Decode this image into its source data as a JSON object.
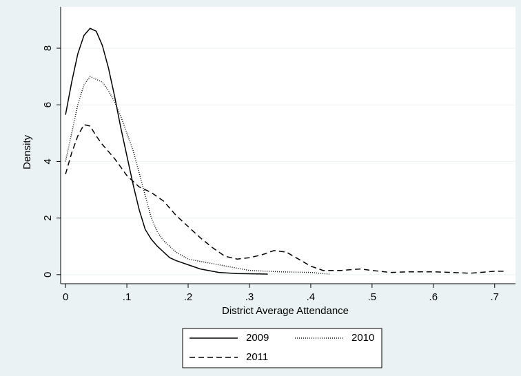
{
  "chart_data": {
    "type": "line",
    "x_label": "District Average Attendance",
    "y_label": "Density",
    "xlim": [
      -0.008,
      0.734
    ],
    "ylim": [
      -0.32,
      9.46
    ],
    "xticks": [
      0,
      {
        "value": 0.1,
        "label": ".1"
      },
      {
        "value": 0.2,
        "label": ".2"
      },
      {
        "value": 0.3,
        "label": ".3"
      },
      {
        "value": 0.4,
        "label": ".4"
      },
      {
        "value": 0.5,
        "label": ".5"
      },
      {
        "value": 0.6,
        "label": ".6"
      },
      {
        "value": 0.7,
        "label": ".7"
      }
    ],
    "yticks": [
      0,
      2,
      4,
      6,
      8
    ],
    "grid": true,
    "legend": "bottom",
    "series": [
      {
        "name": "2009",
        "color": "#000000",
        "dash": "solid",
        "x": [
          0,
          0.01,
          0.02,
          0.03,
          0.04,
          0.05,
          0.06,
          0.07,
          0.08,
          0.09,
          0.1,
          0.11,
          0.12,
          0.13,
          0.14,
          0.15,
          0.16,
          0.17,
          0.18,
          0.2,
          0.22,
          0.25,
          0.28,
          0.33
        ],
        "values": [
          5.65,
          6.8,
          7.8,
          8.45,
          8.7,
          8.6,
          8.1,
          7.3,
          6.3,
          5.2,
          4.2,
          3.2,
          2.3,
          1.6,
          1.25,
          1.0,
          0.8,
          0.6,
          0.5,
          0.35,
          0.2,
          0.08,
          0.04,
          0.02
        ]
      },
      {
        "name": "2010",
        "color": "#000000",
        "dash": "dotted",
        "x": [
          0,
          0.01,
          0.02,
          0.03,
          0.04,
          0.05,
          0.06,
          0.07,
          0.08,
          0.09,
          0.1,
          0.11,
          0.12,
          0.13,
          0.14,
          0.15,
          0.16,
          0.18,
          0.2,
          0.25,
          0.3,
          0.35,
          0.4,
          0.43
        ],
        "values": [
          4.0,
          5.0,
          6.0,
          6.7,
          7.0,
          6.9,
          6.8,
          6.5,
          6.1,
          5.6,
          5.0,
          4.4,
          3.6,
          2.8,
          2.0,
          1.5,
          1.2,
          0.8,
          0.55,
          0.35,
          0.15,
          0.1,
          0.08,
          0.02
        ]
      },
      {
        "name": "2011",
        "color": "#000000",
        "dash": "dashed",
        "x": [
          0,
          0.01,
          0.02,
          0.03,
          0.04,
          0.05,
          0.06,
          0.08,
          0.1,
          0.12,
          0.14,
          0.16,
          0.18,
          0.2,
          0.22,
          0.24,
          0.26,
          0.28,
          0.3,
          0.32,
          0.34,
          0.36,
          0.38,
          0.4,
          0.42,
          0.45,
          0.48,
          0.5,
          0.53,
          0.56,
          0.6,
          0.63,
          0.66,
          0.7,
          0.72
        ],
        "values": [
          3.55,
          4.3,
          4.9,
          5.3,
          5.25,
          4.9,
          4.6,
          4.1,
          3.5,
          3.1,
          2.9,
          2.6,
          2.1,
          1.7,
          1.3,
          0.95,
          0.65,
          0.55,
          0.6,
          0.7,
          0.85,
          0.8,
          0.55,
          0.3,
          0.15,
          0.15,
          0.2,
          0.15,
          0.08,
          0.1,
          0.1,
          0.08,
          0.05,
          0.12,
          0.12
        ]
      }
    ]
  }
}
